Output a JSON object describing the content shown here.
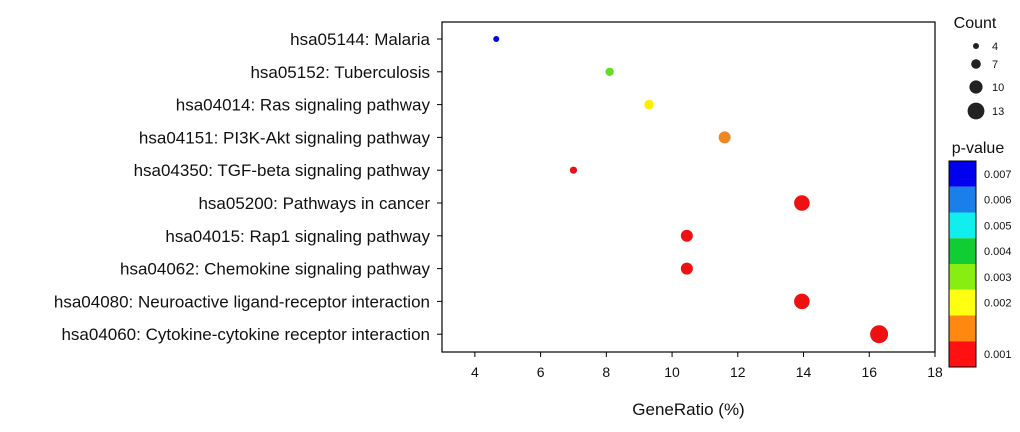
{
  "chart_data": {
    "type": "scatter",
    "xlabel": "GeneRatio (%)",
    "ylabel": "",
    "xlim": [
      3,
      18
    ],
    "xticks": [
      "4",
      "6",
      "8",
      "10",
      "12",
      "14",
      "16",
      "18"
    ],
    "categories": [
      "hsa05144: Malaria",
      "hsa05152: Tuberculosis",
      "hsa04014: Ras signaling pathway",
      "hsa04151: PI3K-Akt signaling pathway",
      "hsa04350: TGF-beta signaling pathway",
      "hsa05200: Pathways in cancer",
      "hsa04015: Rap1 signaling pathway",
      "hsa04062: Chemokine signaling pathway",
      "hsa04080: Neuroactive ligand-receptor interaction",
      "hsa04060: Cytokine-cytokine receptor interaction"
    ],
    "points": [
      {
        "category": "hsa05144: Malaria",
        "gene_ratio": 4.65,
        "count": 4,
        "p_value": 0.0069,
        "color": "#0000ee"
      },
      {
        "category": "hsa05152: Tuberculosis",
        "gene_ratio": 8.1,
        "count": 6,
        "p_value": 0.0038,
        "color": "#66dd22"
      },
      {
        "category": "hsa04014: Ras signaling pathway",
        "gene_ratio": 9.3,
        "count": 7,
        "p_value": 0.0022,
        "color": "#ffee00"
      },
      {
        "category": "hsa04151: PI3K-Akt signaling pathway",
        "gene_ratio": 11.6,
        "count": 9,
        "p_value": 0.0016,
        "color": "#ee8822"
      },
      {
        "category": "hsa04350: TGF-beta signaling pathway",
        "gene_ratio": 7.0,
        "count": 5,
        "p_value": 0.0008,
        "color": "#ee1111"
      },
      {
        "category": "hsa05200: Pathways in cancer",
        "gene_ratio": 13.95,
        "count": 12,
        "p_value": 0.0004,
        "color": "#ee1111"
      },
      {
        "category": "hsa04015: Rap1 signaling pathway",
        "gene_ratio": 10.45,
        "count": 9,
        "p_value": 0.0004,
        "color": "#ee1111"
      },
      {
        "category": "hsa04062: Chemokine signaling pathway",
        "gene_ratio": 10.45,
        "count": 9,
        "p_value": 0.0004,
        "color": "#ee1111"
      },
      {
        "category": "hsa04080: Neuroactive ligand-receptor interaction",
        "gene_ratio": 13.95,
        "count": 12,
        "p_value": 0.0003,
        "color": "#ee1111"
      },
      {
        "category": "hsa04060: Cytokine-cytokine receptor interaction",
        "gene_ratio": 16.3,
        "count": 14,
        "p_value": 0.0002,
        "color": "#ee1111"
      }
    ],
    "size_legend": {
      "title": "Count",
      "entries": [
        {
          "label": "4",
          "value": 4
        },
        {
          "label": "7",
          "value": 7
        },
        {
          "label": "10",
          "value": 10
        },
        {
          "label": "13",
          "value": 13
        }
      ]
    },
    "color_legend": {
      "title": "p-value",
      "bands": [
        {
          "label": "0.007",
          "color": "#0000ee"
        },
        {
          "label": "0.006",
          "color": "#1a7fe8"
        },
        {
          "label": "0.005",
          "color": "#11eeee"
        },
        {
          "label": "0.004",
          "color": "#11cc33"
        },
        {
          "label": "0.003",
          "color": "#88ee11"
        },
        {
          "label": "0.002",
          "color": "#ffff11"
        },
        {
          "label": "",
          "color": "#ff8811"
        },
        {
          "label": "0.001",
          "color": "#ff1111"
        }
      ]
    }
  }
}
